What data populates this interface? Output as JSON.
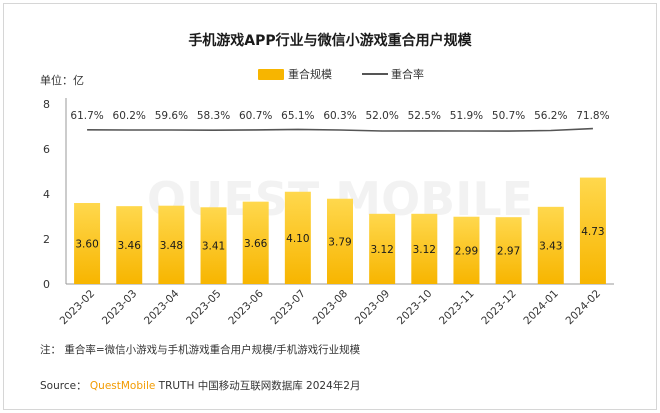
{
  "title": "手机游戏APP行业与微信小游戏重合用户规模",
  "unit_label": "单位：亿",
  "legend": {
    "bar": "重合规模",
    "line": "重合率"
  },
  "note": "注：   重合率=微信小游戏与手机游戏重合用户规模/手机游戏行业规模",
  "source": {
    "prefix": "Source： ",
    "brand": "QuestMobile",
    "rest": " TRUTH 中国移动互联网数据库 2024年2月"
  },
  "watermark": "QUEST MOBILE",
  "colors": {
    "bar": "#f7b500",
    "bar_light": "#ffd84d",
    "line": "#555555",
    "axis": "#999999"
  },
  "chart_data": {
    "type": "bar",
    "categories": [
      "2023-02",
      "2023-03",
      "2023-04",
      "2023-05",
      "2023-06",
      "2023-07",
      "2023-08",
      "2023-09",
      "2023-10",
      "2023-11",
      "2023-12",
      "2024-01",
      "2024-02"
    ],
    "series": [
      {
        "name": "重合规模",
        "type": "bar",
        "values": [
          3.6,
          3.46,
          3.48,
          3.41,
          3.66,
          4.1,
          3.79,
          3.12,
          3.12,
          2.99,
          2.97,
          3.43,
          4.73
        ],
        "labels": [
          "3.60",
          "3.46",
          "3.48",
          "3.41",
          "3.66",
          "4.10",
          "3.79",
          "3.12",
          "3.12",
          "2.99",
          "2.97",
          "3.43",
          "4.73"
        ]
      },
      {
        "name": "重合率",
        "type": "line",
        "values": [
          61.7,
          60.2,
          59.6,
          58.3,
          60.7,
          65.1,
          60.3,
          52.0,
          52.5,
          51.9,
          50.7,
          56.2,
          71.8
        ],
        "labels": [
          "61.7%",
          "60.2%",
          "59.6%",
          "58.3%",
          "60.7%",
          "65.1%",
          "60.3%",
          "52.0%",
          "52.5%",
          "51.9%",
          "50.7%",
          "56.2%",
          "71.8%"
        ]
      }
    ],
    "yaxis": {
      "ticks": [
        "0",
        "2",
        "4",
        "6",
        "8"
      ],
      "range": [
        0,
        8
      ]
    },
    "grid": false,
    "legend_position": "top"
  }
}
